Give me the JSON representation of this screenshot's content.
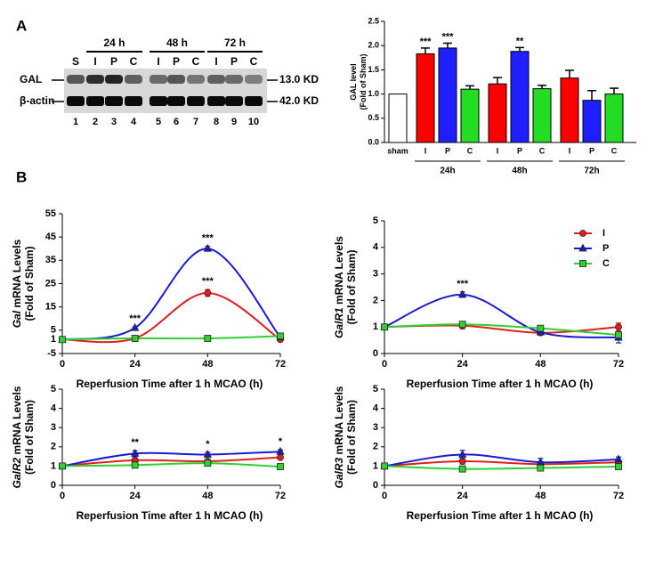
{
  "figure": {
    "panel_a": "A",
    "panel_b": "B"
  },
  "blot": {
    "times": [
      "24 h",
      "48 h",
      "72 h"
    ],
    "lanes": [
      "S",
      "I",
      "P",
      "C",
      "I",
      "P",
      "C",
      "I",
      "P",
      "C"
    ],
    "numbers": [
      "1",
      "2",
      "3",
      "4",
      "5",
      "6",
      "7",
      "8",
      "9",
      "10"
    ],
    "rows": [
      {
        "label": "GAL",
        "size": "13.0 KD"
      },
      {
        "label": "β-actin",
        "size": "42.0 KD"
      }
    ]
  },
  "chart_data": [
    {
      "type": "bar",
      "ylabel": "GAL level",
      "ylabel2": "(Fold of Sham)",
      "categories": [
        "sham",
        "I",
        "P",
        "C",
        "I",
        "P",
        "C",
        "I",
        "P",
        "C"
      ],
      "values": [
        1.0,
        1.83,
        1.95,
        1.1,
        1.21,
        1.88,
        1.11,
        1.33,
        0.87,
        1.0
      ],
      "errors": [
        0,
        0.12,
        0.1,
        0.07,
        0.13,
        0.08,
        0.07,
        0.16,
        0.2,
        0.12
      ],
      "colors": [
        "#ffffff",
        "#ff0000",
        "#2020ff",
        "#22dd22",
        "#ff0000",
        "#2020ff",
        "#22dd22",
        "#ff0000",
        "#2020ff",
        "#22dd22"
      ],
      "groups": [
        {
          "label": "24h",
          "from": 1,
          "to": 3
        },
        {
          "label": "48h",
          "from": 4,
          "to": 6
        },
        {
          "label": "72h",
          "from": 7,
          "to": 9
        }
      ],
      "annotations": [
        {
          "text": "***",
          "index": 1
        },
        {
          "text": "***",
          "index": 2
        },
        {
          "text": "**",
          "index": 5
        }
      ],
      "ylim": [
        0,
        2.5
      ],
      "yticks": [
        {
          "value": 0,
          "label": "0.0"
        },
        0.5,
        {
          "value": 1,
          "label": "1.0"
        },
        1.5,
        {
          "value": 2,
          "label": "2.0"
        },
        2.5
      ]
    },
    {
      "type": "line",
      "ylabel_gene": "Gal",
      "ylabel": " mRNA Levels",
      "ylabel2": "(Fold of Sham)",
      "xlabel": "Reperfusion Time after 1 h MCAO (h)",
      "x": [
        0,
        24,
        48,
        72
      ],
      "xlim": [
        0,
        72
      ],
      "xticks": [
        0,
        24,
        48,
        72
      ],
      "ylim": [
        -5,
        55
      ],
      "yticks": [
        -5,
        1,
        5,
        15,
        25,
        35,
        45,
        55
      ],
      "series": [
        {
          "name": "I",
          "color": "#e02020",
          "marker": "circle",
          "values": [
            1,
            1.5,
            21,
            1
          ],
          "errors": [
            0,
            0.5,
            1.5,
            0.6
          ]
        },
        {
          "name": "P",
          "color": "#1a1ad0",
          "marker": "triangle",
          "values": [
            1,
            6,
            40,
            2
          ],
          "errors": [
            0,
            0.5,
            1,
            0.6
          ]
        },
        {
          "name": "C",
          "color": "#30d030",
          "marker": "square",
          "values": [
            1,
            1.5,
            1.5,
            2.5
          ],
          "errors": [
            0,
            0.3,
            0.3,
            0.4
          ]
        }
      ],
      "annotations": [
        {
          "text": "***",
          "index": 1,
          "series": 1
        },
        {
          "text": "***",
          "index": 2,
          "series": 1
        },
        {
          "text": "***",
          "index": 2,
          "series": 0
        }
      ]
    },
    {
      "type": "line",
      "ylabel_gene": "GalR1",
      "ylabel": " mRNA Levels",
      "ylabel2": "(Fold of Sham)",
      "xlabel": "Reperfusion Time after 1 h MCAO (h)",
      "legend": "top-right",
      "x": [
        0,
        24,
        48,
        72
      ],
      "xlim": [
        0,
        72
      ],
      "xticks": [
        0,
        24,
        48,
        72
      ],
      "ylim": [
        0,
        5
      ],
      "yticks": [
        0,
        1,
        2,
        3,
        4,
        5
      ],
      "series": [
        {
          "name": "I",
          "color": "#e02020",
          "marker": "circle",
          "values": [
            1,
            1.05,
            0.78,
            1.0
          ],
          "errors": [
            0,
            0.12,
            0.08,
            0.15
          ]
        },
        {
          "name": "P",
          "color": "#1a1ad0",
          "marker": "triangle",
          "values": [
            1,
            2.22,
            0.8,
            0.6
          ],
          "errors": [
            0,
            0.1,
            0.08,
            0.2
          ]
        },
        {
          "name": "C",
          "color": "#30d030",
          "marker": "square",
          "values": [
            1,
            1.1,
            0.95,
            0.7
          ],
          "errors": [
            0,
            0.08,
            0.06,
            0.1
          ]
        }
      ],
      "annotations": [
        {
          "text": "***",
          "index": 1,
          "series": 1
        }
      ]
    },
    {
      "type": "line",
      "ylabel_gene": "GalR2",
      "ylabel": " mRNA Levels",
      "ylabel2": "(Fold of Sham)",
      "xlabel": "Reperfusion Time after 1 h MCAO (h)",
      "x": [
        0,
        24,
        48,
        72
      ],
      "xlim": [
        0,
        72
      ],
      "xticks": [
        0,
        24,
        48,
        72
      ],
      "ylim": [
        0,
        5
      ],
      "yticks": [
        0,
        1,
        2,
        3,
        4,
        5
      ],
      "series": [
        {
          "name": "I",
          "color": "#e02020",
          "marker": "circle",
          "values": [
            1,
            1.3,
            1.25,
            1.45
          ],
          "errors": [
            0,
            0.12,
            0.1,
            0.1
          ]
        },
        {
          "name": "P",
          "color": "#1a1ad0",
          "marker": "triangle",
          "values": [
            1,
            1.65,
            1.6,
            1.75
          ],
          "errors": [
            0,
            0.15,
            0.12,
            0.1
          ]
        },
        {
          "name": "C",
          "color": "#30d030",
          "marker": "square",
          "values": [
            1,
            1.05,
            1.15,
            0.97
          ],
          "errors": [
            0,
            0.08,
            0.08,
            0.06
          ]
        }
      ],
      "annotations": [
        {
          "text": "**",
          "index": 1,
          "series": 1
        },
        {
          "text": "*",
          "index": 2,
          "series": 1
        },
        {
          "text": "*",
          "index": 3,
          "series": 1
        }
      ]
    },
    {
      "type": "line",
      "ylabel_gene": "GalR3",
      "ylabel": " mRNA Levels",
      "ylabel2": "(Fold of Sham)",
      "xlabel": "Reperfusion Time after 1 h MCAO (h)",
      "x": [
        0,
        24,
        48,
        72
      ],
      "xlim": [
        0,
        72
      ],
      "xticks": [
        0,
        24,
        48,
        72
      ],
      "ylim": [
        0,
        5
      ],
      "yticks": [
        0,
        1,
        2,
        3,
        4,
        5
      ],
      "series": [
        {
          "name": "I",
          "color": "#e02020",
          "marker": "circle",
          "values": [
            1,
            1.25,
            1.1,
            1.2
          ],
          "errors": [
            0,
            0.15,
            0.12,
            0.12
          ]
        },
        {
          "name": "P",
          "color": "#1a1ad0",
          "marker": "triangle",
          "values": [
            1,
            1.6,
            1.2,
            1.35
          ],
          "errors": [
            0,
            0.22,
            0.2,
            0.12
          ]
        },
        {
          "name": "C",
          "color": "#30d030",
          "marker": "square",
          "values": [
            1,
            0.85,
            0.9,
            0.97
          ],
          "errors": [
            0,
            0.12,
            0.1,
            0.1
          ]
        }
      ],
      "annotations": []
    }
  ]
}
